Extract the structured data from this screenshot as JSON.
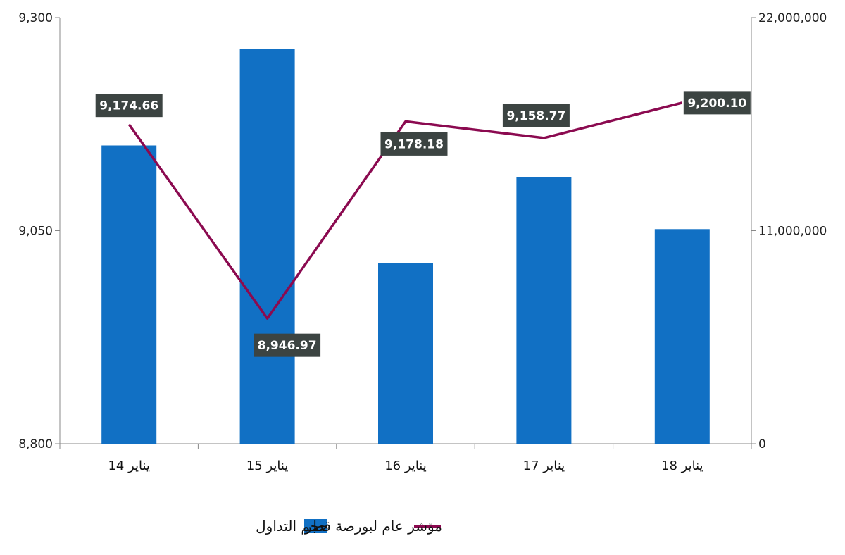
{
  "chart_data": {
    "type": "bar-line-combo",
    "categories": [
      "14 يناير",
      "15 يناير",
      "16 يناير",
      "17 يناير",
      "18 يناير"
    ],
    "series": [
      {
        "name": "حجم التداول",
        "type": "bar",
        "axis": "right",
        "color": "#1170C4",
        "values": [
          15400000,
          20400000,
          9330000,
          13750000,
          11080000
        ]
      },
      {
        "name": "مؤشر عام لبورصة قطر",
        "type": "line",
        "axis": "left",
        "color": "#8B0A50",
        "values": [
          9174.66,
          8946.97,
          9178.18,
          9158.77,
          9200.1
        ],
        "labels": [
          "9,174.66",
          "8,946.97",
          "9,178.18",
          "9,158.77",
          "9,200.10"
        ]
      }
    ],
    "y_left": {
      "min": 8800,
      "max": 9300,
      "ticks": [
        "8,800",
        "9,050",
        "9,300"
      ]
    },
    "y_right": {
      "min": 0,
      "max": 22000000,
      "ticks": [
        "0",
        "11,000,000",
        "22,000,000"
      ]
    },
    "grid": false,
    "legend_position": "bottom",
    "label_box_color": "#3C4442"
  }
}
